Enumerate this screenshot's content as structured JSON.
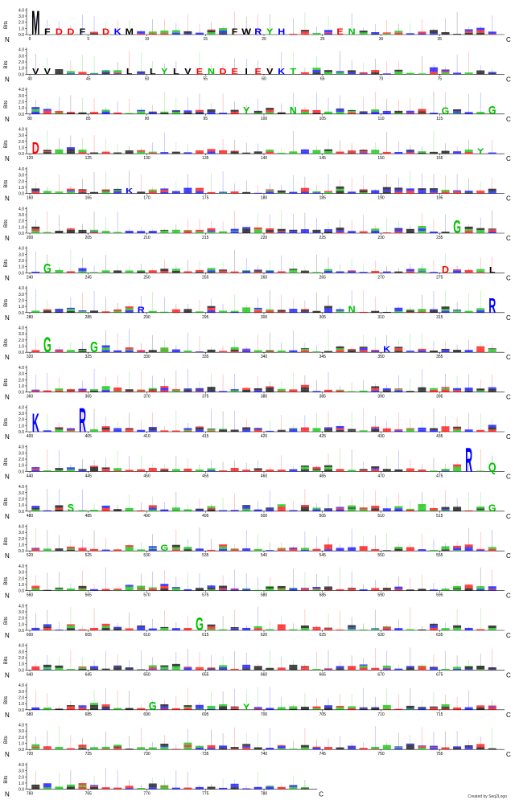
{
  "chart_data": {
    "type": "sequence-logo",
    "ylabel": "Bits",
    "ylim": [
      0,
      4.3
    ],
    "y_ticks": [
      "0.0",
      "1.0",
      "2.0",
      "3.0",
      "4.0"
    ],
    "n_label": "N",
    "c_label": "C",
    "color_scheme": {
      "hydrophobic": "#000000",
      "polar": "#00c000",
      "basic": "#0000ff",
      "acidic": "#ff0000"
    },
    "rows": [
      {
        "start": 0,
        "end": 39,
        "tick_labels": [
          "0",
          "5",
          "10",
          "15",
          "20",
          "25",
          "30",
          "35"
        ]
      },
      {
        "start": 40,
        "end": 79,
        "tick_labels": [
          "40",
          "45",
          "50",
          "55",
          "60",
          "65",
          "70",
          "75"
        ]
      },
      {
        "start": 80,
        "end": 119,
        "tick_labels": [
          "80",
          "85",
          "90",
          "95",
          "100",
          "105",
          "110",
          "115"
        ]
      },
      {
        "start": 120,
        "end": 159,
        "tick_labels": [
          "120",
          "125",
          "130",
          "135",
          "140",
          "145",
          "150",
          "155"
        ]
      },
      {
        "start": 160,
        "end": 199,
        "tick_labels": [
          "160",
          "165",
          "170",
          "175",
          "180",
          "185",
          "190",
          "195"
        ]
      },
      {
        "start": 200,
        "end": 239,
        "tick_labels": [
          "200",
          "205",
          "210",
          "215",
          "220",
          "225",
          "230",
          "235"
        ]
      },
      {
        "start": 240,
        "end": 279,
        "tick_labels": [
          "240",
          "245",
          "250",
          "255",
          "260",
          "265",
          "270",
          "275"
        ]
      },
      {
        "start": 280,
        "end": 319,
        "tick_labels": [
          "280",
          "285",
          "290",
          "295",
          "300",
          "305",
          "310",
          "315"
        ]
      },
      {
        "start": 320,
        "end": 359,
        "tick_labels": [
          "320",
          "325",
          "330",
          "335",
          "340",
          "345",
          "350",
          "355"
        ]
      },
      {
        "start": 360,
        "end": 399,
        "tick_labels": [
          "360",
          "365",
          "370",
          "375",
          "380",
          "385",
          "390",
          "395"
        ]
      },
      {
        "start": 400,
        "end": 439,
        "tick_labels": [
          "400",
          "405",
          "410",
          "415",
          "420",
          "425",
          "430",
          "435"
        ]
      },
      {
        "start": 440,
        "end": 479,
        "tick_labels": [
          "440",
          "445",
          "450",
          "455",
          "460",
          "465",
          "470",
          "475"
        ]
      },
      {
        "start": 480,
        "end": 519,
        "tick_labels": [
          "480",
          "485",
          "490",
          "495",
          "500",
          "505",
          "510",
          "515"
        ]
      },
      {
        "start": 520,
        "end": 559,
        "tick_labels": [
          "520",
          "525",
          "530",
          "535",
          "540",
          "545",
          "550",
          "555"
        ]
      },
      {
        "start": 560,
        "end": 599,
        "tick_labels": [
          "560",
          "565",
          "570",
          "575",
          "580",
          "585",
          "590",
          "595"
        ]
      },
      {
        "start": 600,
        "end": 639,
        "tick_labels": [
          "600",
          "605",
          "610",
          "615",
          "620",
          "625",
          "630",
          "635"
        ]
      },
      {
        "start": 640,
        "end": 679,
        "tick_labels": [
          "640",
          "645",
          "650",
          "655",
          "660",
          "665",
          "670",
          "675"
        ]
      },
      {
        "start": 680,
        "end": 719,
        "tick_labels": [
          "680",
          "685",
          "690",
          "695",
          "700",
          "705",
          "710",
          "715"
        ]
      },
      {
        "start": 720,
        "end": 759,
        "tick_labels": [
          "720",
          "725",
          "730",
          "735",
          "740",
          "745",
          "750",
          "755"
        ]
      },
      {
        "start": 760,
        "end": 783,
        "tick_labels": [
          "760",
          "765",
          "770",
          "775",
          "780"
        ]
      }
    ],
    "major_letters": [
      {
        "pos": 0,
        "letter": "M",
        "bits": 4.0
      },
      {
        "pos": 1,
        "letter": "F",
        "bits": 1.0
      },
      {
        "pos": 2,
        "letter": "D",
        "bits": 1.0
      },
      {
        "pos": 3,
        "letter": "D",
        "bits": 1.0
      },
      {
        "pos": 4,
        "letter": "F",
        "bits": 1.0
      },
      {
        "pos": 6,
        "letter": "D",
        "bits": 1.0
      },
      {
        "pos": 7,
        "letter": "K",
        "bits": 1.0
      },
      {
        "pos": 8,
        "letter": "M",
        "bits": 1.0
      },
      {
        "pos": 17,
        "letter": "F",
        "bits": 1.0
      },
      {
        "pos": 18,
        "letter": "W",
        "bits": 1.0
      },
      {
        "pos": 19,
        "letter": "R",
        "bits": 1.0
      },
      {
        "pos": 20,
        "letter": "Y",
        "bits": 1.0
      },
      {
        "pos": 21,
        "letter": "H",
        "bits": 1.0
      },
      {
        "pos": 26,
        "letter": "E",
        "bits": 1.0
      },
      {
        "pos": 27,
        "letter": "N",
        "bits": 1.0
      },
      {
        "pos": 40,
        "letter": "V",
        "bits": 1.0
      },
      {
        "pos": 41,
        "letter": "V",
        "bits": 1.0
      },
      {
        "pos": 48,
        "letter": "L",
        "bits": 1.0
      },
      {
        "pos": 50,
        "letter": "L",
        "bits": 1.0
      },
      {
        "pos": 51,
        "letter": "Y",
        "bits": 1.0
      },
      {
        "pos": 52,
        "letter": "L",
        "bits": 1.0
      },
      {
        "pos": 53,
        "letter": "V",
        "bits": 1.0
      },
      {
        "pos": 54,
        "letter": "E",
        "bits": 1.0
      },
      {
        "pos": 55,
        "letter": "N",
        "bits": 1.0
      },
      {
        "pos": 56,
        "letter": "D",
        "bits": 1.0
      },
      {
        "pos": 57,
        "letter": "E",
        "bits": 1.0
      },
      {
        "pos": 58,
        "letter": "I",
        "bits": 1.0
      },
      {
        "pos": 59,
        "letter": "E",
        "bits": 1.0
      },
      {
        "pos": 60,
        "letter": "V",
        "bits": 1.0
      },
      {
        "pos": 61,
        "letter": "K",
        "bits": 1.0
      },
      {
        "pos": 62,
        "letter": "T",
        "bits": 1.0
      },
      {
        "pos": 98,
        "letter": "Y",
        "bits": 1.2
      },
      {
        "pos": 102,
        "letter": "N",
        "bits": 1.2
      },
      {
        "pos": 115,
        "letter": "G",
        "bits": 1.1
      },
      {
        "pos": 119,
        "letter": "G",
        "bits": 1.4
      },
      {
        "pos": 120,
        "letter": "D",
        "bits": 1.9
      },
      {
        "pos": 158,
        "letter": "Y",
        "bits": 0.9
      },
      {
        "pos": 168,
        "letter": "K",
        "bits": 0.9
      },
      {
        "pos": 236,
        "letter": "G",
        "bits": 2.2
      },
      {
        "pos": 241,
        "letter": "G",
        "bits": 1.6
      },
      {
        "pos": 275,
        "letter": "D",
        "bits": 1.1
      },
      {
        "pos": 279,
        "letter": "L",
        "bits": 1.0
      },
      {
        "pos": 289,
        "letter": "R",
        "bits": 1.0
      },
      {
        "pos": 307,
        "letter": "N",
        "bits": 1.1
      },
      {
        "pos": 319,
        "letter": "R",
        "bits": 2.4
      },
      {
        "pos": 321,
        "letter": "G",
        "bits": 2.5
      },
      {
        "pos": 325,
        "letter": "G",
        "bits": 1.7
      },
      {
        "pos": 350,
        "letter": "K",
        "bits": 1.0
      },
      {
        "pos": 400,
        "letter": "K",
        "bits": 3.0
      },
      {
        "pos": 404,
        "letter": "R",
        "bits": 4.0
      },
      {
        "pos": 477,
        "letter": "R",
        "bits": 4.0
      },
      {
        "pos": 479,
        "letter": "Q",
        "bits": 1.5
      },
      {
        "pos": 483,
        "letter": "S",
        "bits": 1.2
      },
      {
        "pos": 519,
        "letter": "G",
        "bits": 1.1
      },
      {
        "pos": 531,
        "letter": "G",
        "bits": 1.0
      },
      {
        "pos": 614,
        "letter": "G",
        "bits": 2.2
      },
      {
        "pos": 690,
        "letter": "G",
        "bits": 1.4
      },
      {
        "pos": 698,
        "letter": "Y",
        "bits": 1.0
      }
    ]
  }
}
